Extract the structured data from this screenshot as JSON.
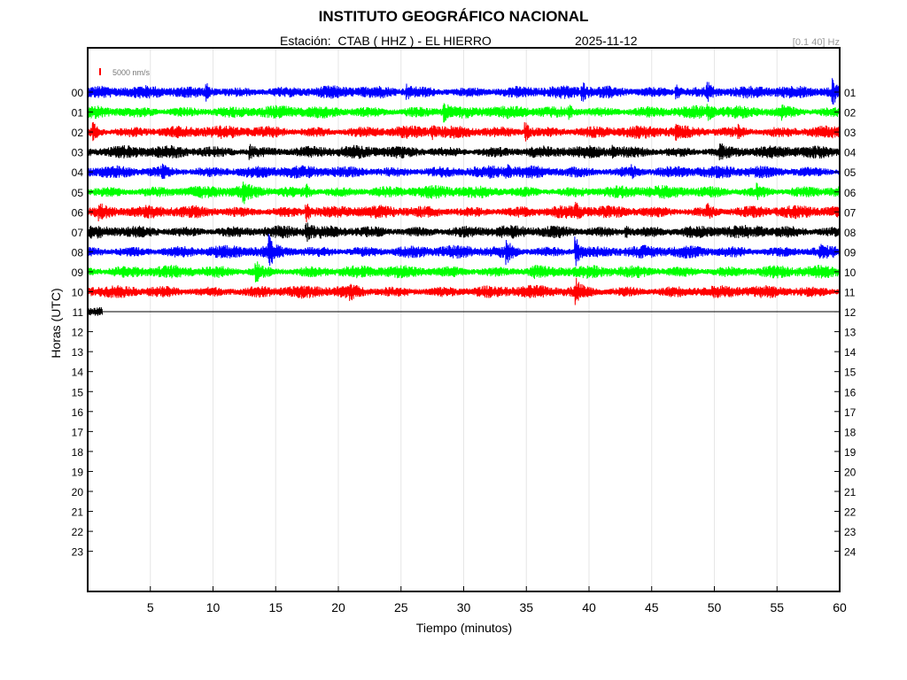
{
  "header": {
    "title": "INSTITUTO GEOGRÁFICO NACIONAL",
    "station": "Estación:  CTAB ( HHZ ) - EL HIERRO",
    "date": "2025-11-12",
    "filter": "[0.1 40] Hz"
  },
  "chart_data": {
    "type": "line",
    "title": "INSTITUTO GEOGRÁFICO NACIONAL",
    "xlabel": "Tiempo (minutos)",
    "ylabel": "Horas (UTC)",
    "xlim": [
      0,
      60
    ],
    "x_ticks": [
      5,
      10,
      15,
      20,
      25,
      30,
      35,
      40,
      45,
      50,
      55,
      60
    ],
    "y_ticks_left": [
      "00",
      "01",
      "02",
      "03",
      "04",
      "05",
      "06",
      "07",
      "08",
      "09",
      "10",
      "11",
      "12",
      "13",
      "14",
      "15",
      "16",
      "17",
      "18",
      "19",
      "20",
      "21",
      "22",
      "23"
    ],
    "y_ticks_right": [
      "01",
      "02",
      "03",
      "04",
      "05",
      "06",
      "07",
      "08",
      "09",
      "10",
      "11",
      "12",
      "13",
      "14",
      "15",
      "16",
      "17",
      "18",
      "19",
      "20",
      "21",
      "22",
      "23",
      "24"
    ],
    "scale_label": "5000 nm/s",
    "scale_color": "#ff0000",
    "grid": "vertical",
    "series": [
      {
        "hour": "00",
        "color": "#0000ff",
        "end_minute": 60,
        "events": [
          [
            9.5,
            2.2
          ],
          [
            25.5,
            2.0
          ],
          [
            39.5,
            2.6
          ],
          [
            47,
            2.3
          ],
          [
            49.5,
            2.4
          ],
          [
            59.5,
            2.8
          ]
        ]
      },
      {
        "hour": "01",
        "color": "#00ff00",
        "end_minute": 60,
        "events": [
          [
            28.5,
            2.6
          ],
          [
            38.5,
            1.8
          ],
          [
            49.5,
            1.9
          ],
          [
            55.5,
            1.8
          ]
        ]
      },
      {
        "hour": "02",
        "color": "#ff0000",
        "end_minute": 60,
        "events": [
          [
            0.5,
            2.4
          ],
          [
            35,
            2.5
          ],
          [
            27.5,
            1.8
          ],
          [
            47,
            1.7
          ],
          [
            52,
            1.7
          ]
        ]
      },
      {
        "hour": "03",
        "color": "#000000",
        "end_minute": 60,
        "events": [
          [
            13,
            2.0
          ],
          [
            42,
            1.9
          ],
          [
            50.5,
            1.9
          ]
        ]
      },
      {
        "hour": "04",
        "color": "#0000ff",
        "end_minute": 60,
        "events": [
          [
            6,
            1.7
          ],
          [
            33.5,
            1.7
          ],
          [
            43.5,
            1.6
          ]
        ]
      },
      {
        "hour": "05",
        "color": "#00ff00",
        "end_minute": 60,
        "events": [
          [
            12.5,
            2.1
          ],
          [
            17.5,
            2.0
          ],
          [
            53.5,
            2.1
          ]
        ]
      },
      {
        "hour": "06",
        "color": "#ff0000",
        "end_minute": 60,
        "events": [
          [
            1,
            2.1
          ],
          [
            17.5,
            2.5
          ],
          [
            39,
            1.9
          ],
          [
            49.5,
            1.8
          ]
        ]
      },
      {
        "hour": "07",
        "color": "#000000",
        "end_minute": 60,
        "events": [
          [
            17.5,
            2.2
          ],
          [
            43,
            2.0
          ],
          [
            53.5,
            1.6
          ]
        ]
      },
      {
        "hour": "08",
        "color": "#0000ff",
        "end_minute": 60,
        "events": [
          [
            14.5,
            3.5
          ],
          [
            33.5,
            2.6
          ],
          [
            39,
            3.8
          ],
          [
            58.5,
            1.6
          ]
        ]
      },
      {
        "hour": "09",
        "color": "#00ff00",
        "end_minute": 60,
        "events": [
          [
            13.5,
            2.4
          ],
          [
            35.5,
            1.8
          ]
        ]
      },
      {
        "hour": "10",
        "color": "#ff0000",
        "end_minute": 60,
        "events": [
          [
            21,
            1.8
          ],
          [
            39,
            2.8
          ]
        ]
      },
      {
        "hour": "11",
        "color": "#000000",
        "end_minute": 1.2,
        "events": []
      }
    ]
  }
}
